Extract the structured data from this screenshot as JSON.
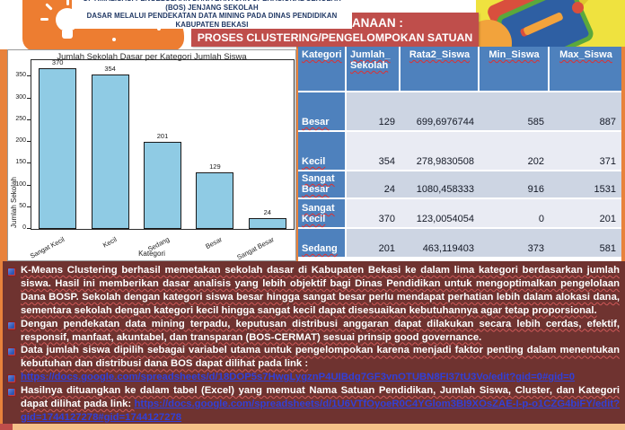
{
  "header": {
    "line1": "OPTIMALISASI PENGELOLAAN DANA BANTUAN OPERASIONAL SEKOLAH (BOS) JENJANG SEKOLAH",
    "line2": "DASAR MELALUI PENDEKATAN DATA MINING PADA DINAS PENDIDIKAN KABUPATEN BEKASI",
    "banner_line1": "TAHAP PLAKSANAAN :",
    "banner_line2": "PROSES CLUSTERING/PENGELOMPOKAN SATUAN PENDIDIKAN"
  },
  "chart_data": {
    "type": "bar",
    "title": "Jumlah Sekolah Dasar per Kategori Jumlah Siswa",
    "xlabel": "Kategori",
    "ylabel": "Jumlah Sekolah",
    "categories": [
      "Sangat Kecil",
      "Kecil",
      "Sedang",
      "Besar",
      "Sangat Besar"
    ],
    "values": [
      370,
      354,
      201,
      129,
      24
    ],
    "ylim": [
      0,
      388
    ],
    "yticks": [
      0,
      50,
      100,
      150,
      200,
      250,
      300,
      350
    ],
    "grid": false,
    "legend": null,
    "bar_color": "#8FCBE4",
    "bar_edge_color": "#1a1a1a"
  },
  "table": {
    "headers": [
      "Kategori",
      "Jumlah_ Sekolah",
      "Rata2_Siswa",
      "Min_Siswa",
      "Max_Siswa"
    ],
    "rows": [
      [
        "Besar",
        "129",
        "699,6976744",
        "585",
        "887"
      ],
      [
        "Kecil",
        "354",
        "278,9830508",
        "202",
        "371"
      ],
      [
        "Sangat Besar",
        "24",
        "1080,458333",
        "916",
        "1531"
      ],
      [
        "Sangat Kecil",
        "370",
        "123,0054054",
        "0",
        "201"
      ],
      [
        "Sedang",
        "201",
        "463,119403",
        "373",
        "581"
      ]
    ]
  },
  "bullets": [
    {
      "segments": [
        {
          "text": "K-Means Clustering berhasil memetakan sekolah dasar di Kabupaten Bekasi ke dalam lima kategori berdasarkan jumlah siswa. Hasil ini memberikan dasar analisis yang lebih objektif bagi Dinas Pendidikan untuk mengoptimalkan pengelolaan Dana BOSP. Sekolah dengan kategori siswa besar hingga sangat besar perlu mendapat perhatian lebih dalam alokasi dana, sementara sekolah dengan kategori kecil hingga sangat kecil dapat disesuaikan kebutuhannya agar tetap proporsional.",
          "link": false
        }
      ]
    },
    {
      "segments": [
        {
          "text": "Dengan pendekatan data mining terpadu, keputusan distribusi anggaran dapat dilakukan secara lebih cerdas, efektif, responsif, manfaat, akuntabel, dan transparan (BOS-CERMAT) sesuai prinsip good governance.",
          "link": false
        }
      ]
    },
    {
      "segments": [
        {
          "text": "Data jumlah siswa dipilih sebagai variabel utama untuk pengelompokan karena menjadi faktor penting dalam menentukan kebutuhan dan distribusi dana BOS dapat dilihat pada link :",
          "link": false
        }
      ]
    },
    {
      "segments": [
        {
          "text": "https://docs.google.com/spreadsheets/d/18DOP5s7HwgLygznP4UIBdg7GF3vnOTUBN8FI37tU3Vo/edit?gid=0#gid=0",
          "link": true
        }
      ]
    },
    {
      "segments": [
        {
          "text": "Hasilnya dituangkan ke dalam tabel (Excel) yang memuat Nama Satuan Pendidikan, Jumlah Siswa, Cluster, dan Kategori dapat dilihat pada link: ",
          "link": false
        },
        {
          "text": "https://docs.google.com/spreadsheets/d/1U6VTfOyoeR0C4YGlom3BI9XOsZAE-I-p-o1CZG4biFY/edit?gid=1744127278#gid=1744127278",
          "link": true
        }
      ]
    }
  ],
  "colors": {
    "accent_orange": "#ED7D31",
    "banner_red": "#BF4E4B",
    "maroon_panel": "#6F3330",
    "table_header_blue": "#4E81BD",
    "band_dark": "#CDD5E3",
    "band_light": "#E9EBF3",
    "bar_blue": "#8FCBE4",
    "link_blue": "#3240D8",
    "header_navy": "#203864"
  }
}
